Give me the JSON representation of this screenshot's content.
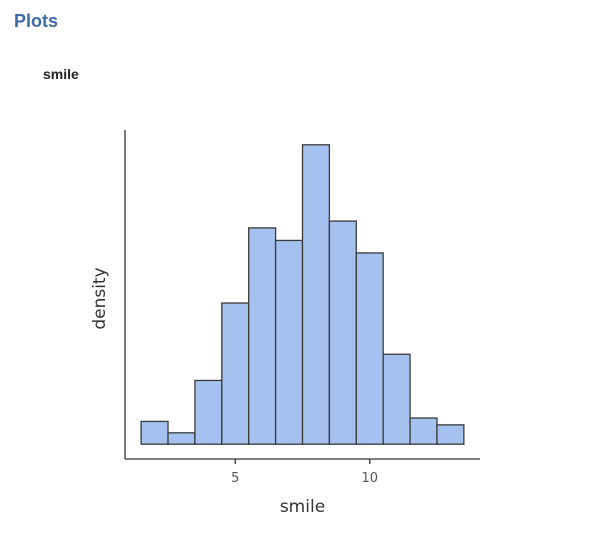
{
  "section": {
    "title": "Plots"
  },
  "chart_data": {
    "type": "bar",
    "title": "smile",
    "xlabel": "smile",
    "ylabel": "density",
    "bin_width": 1,
    "bins": [
      {
        "start": 1.5,
        "end": 2.5,
        "value": 0.02
      },
      {
        "start": 2.5,
        "end": 3.5,
        "value": 0.01
      },
      {
        "start": 3.5,
        "end": 4.5,
        "value": 0.056
      },
      {
        "start": 4.5,
        "end": 5.5,
        "value": 0.124
      },
      {
        "start": 5.5,
        "end": 6.5,
        "value": 0.19
      },
      {
        "start": 6.5,
        "end": 7.5,
        "value": 0.179
      },
      {
        "start": 7.5,
        "end": 8.5,
        "value": 0.263
      },
      {
        "start": 8.5,
        "end": 9.5,
        "value": 0.196
      },
      {
        "start": 9.5,
        "end": 10.5,
        "value": 0.168
      },
      {
        "start": 10.5,
        "end": 11.5,
        "value": 0.079
      },
      {
        "start": 11.5,
        "end": 12.5,
        "value": 0.023
      },
      {
        "start": 12.5,
        "end": 13.5,
        "value": 0.017
      }
    ],
    "xlim": [
      0.9,
      14.1
    ],
    "ylim": [
      -0.013,
      0.276
    ],
    "x_ticks": [
      5,
      10
    ],
    "x_tick_labels": [
      "5",
      "10"
    ],
    "y_ticks_shown": false,
    "grid": false,
    "bar_fill": "#a4c1f0",
    "bar_stroke": "#3a3a3a",
    "axis_color": "#333333"
  }
}
